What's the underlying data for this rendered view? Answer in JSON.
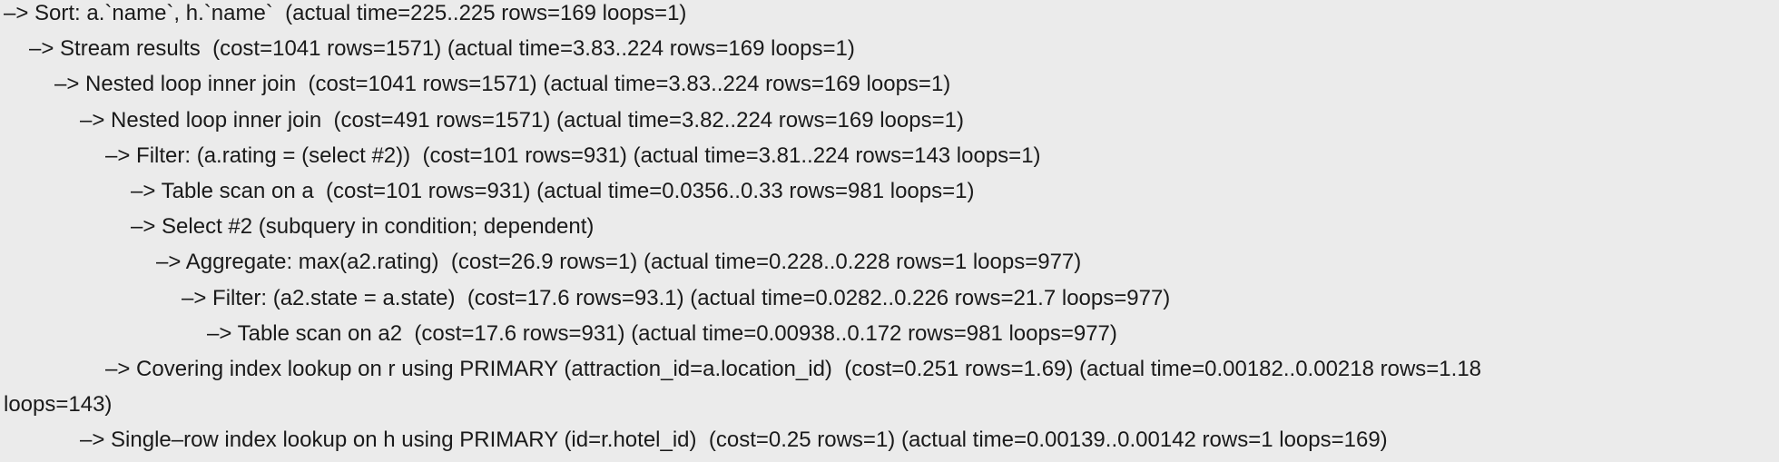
{
  "plan": {
    "lines": [
      {
        "depth": 0,
        "text": "–> Sort: a.`name`, h.`name`  (actual time=225..225 rows=169 loops=1)"
      },
      {
        "depth": 1,
        "text": "–> Stream results  (cost=1041 rows=1571) (actual time=3.83..224 rows=169 loops=1)"
      },
      {
        "depth": 2,
        "text": "–> Nested loop inner join  (cost=1041 rows=1571) (actual time=3.83..224 rows=169 loops=1)"
      },
      {
        "depth": 3,
        "text": "–> Nested loop inner join  (cost=491 rows=1571) (actual time=3.82..224 rows=169 loops=1)"
      },
      {
        "depth": 4,
        "text": "–> Filter: (a.rating = (select #2))  (cost=101 rows=931) (actual time=3.81..224 rows=143 loops=1)"
      },
      {
        "depth": 5,
        "text": "–> Table scan on a  (cost=101 rows=931) (actual time=0.0356..0.33 rows=981 loops=1)"
      },
      {
        "depth": 5,
        "text": "–> Select #2 (subquery in condition; dependent)"
      },
      {
        "depth": 6,
        "text": "–> Aggregate: max(a2.rating)  (cost=26.9 rows=1) (actual time=0.228..0.228 rows=1 loops=977)"
      },
      {
        "depth": 7,
        "text": "–> Filter: (a2.state = a.state)  (cost=17.6 rows=93.1) (actual time=0.0282..0.226 rows=21.7 loops=977)"
      },
      {
        "depth": 8,
        "text": "–> Table scan on a2  (cost=17.6 rows=931) (actual time=0.00938..0.172 rows=981 loops=977)"
      },
      {
        "depth": 4,
        "text": "–> Covering index lookup on r using PRIMARY (attraction_id=a.location_id)  (cost=0.251 rows=1.69) (actual time=0.00182..0.00218 rows=1.18"
      },
      {
        "depth": 0,
        "text": "loops=143)"
      },
      {
        "depth": 3,
        "text": "–> Single–row index lookup on h using PRIMARY (id=r.hotel_id)  (cost=0.25 rows=1) (actual time=0.00139..0.00142 rows=1 loops=169)"
      }
    ]
  }
}
